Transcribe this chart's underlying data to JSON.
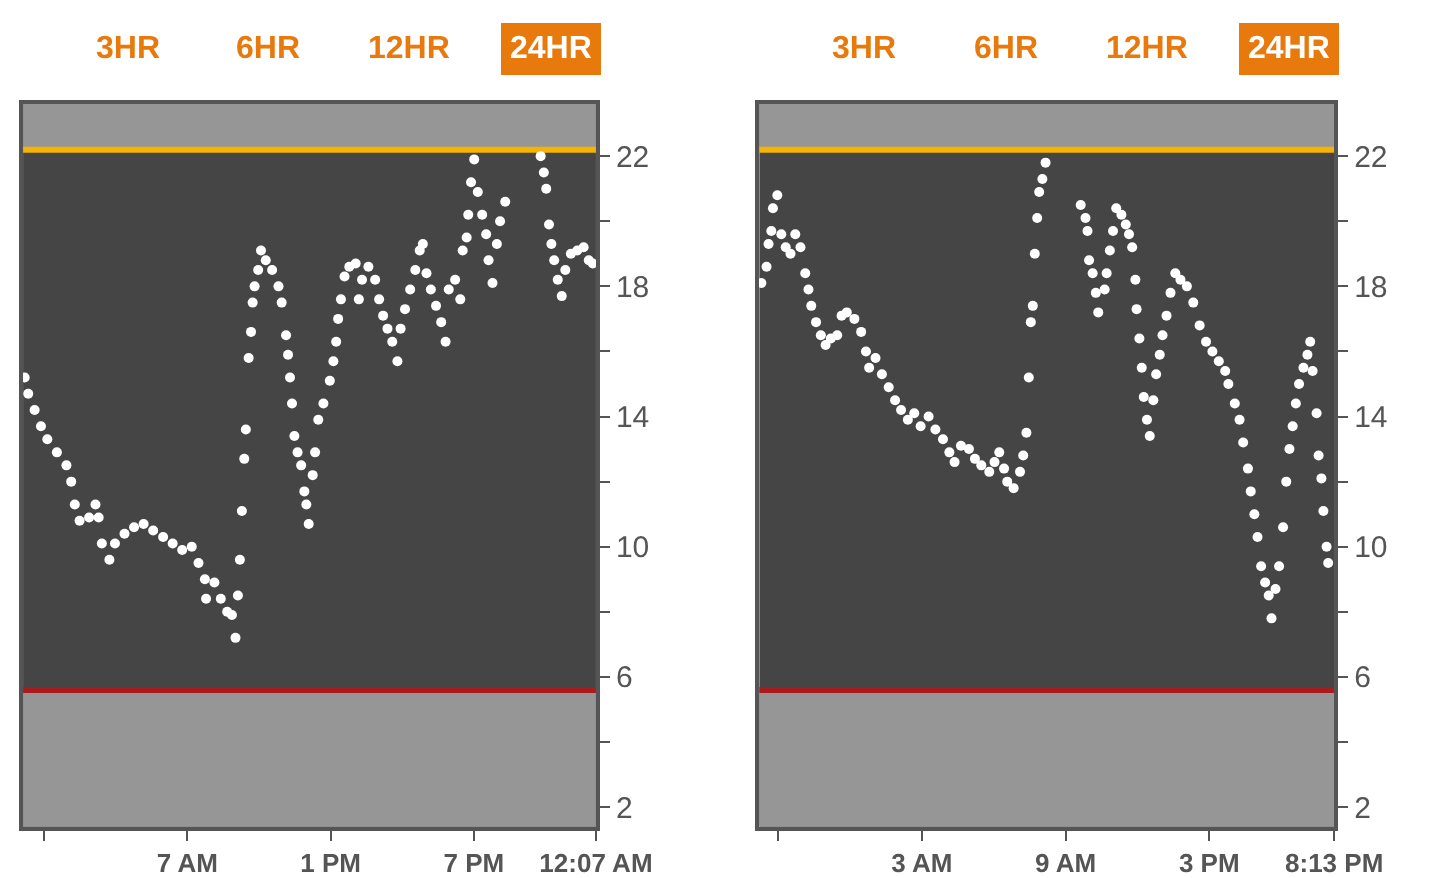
{
  "chart_data": [
    {
      "type": "scatter",
      "annotations": [
        "3HR",
        "6HR",
        "12HR",
        "24HR"
      ],
      "marker": "circle",
      "grid": false,
      "xlim": [
        "--01-01T00:07",
        "--01-02T00:07"
      ],
      "xticks": [
        {
          "value": "--01-01T01:00",
          "label": null
        },
        {
          "value": "--01-01T07:00",
          "label": "7 AM"
        },
        {
          "value": "--01-01T13:00",
          "label": "1 PM"
        },
        {
          "value": "--01-01T19:00",
          "label": "7 PM"
        },
        {
          "value": "--01-02T00:07",
          "label": "12:07 AM"
        }
      ],
      "ylim": [
        1.4,
        23.6
      ],
      "yticks": [
        2,
        {
          "value": 4,
          "label": null
        },
        6,
        {
          "value": 8,
          "label": null
        },
        10,
        {
          "value": 12,
          "label": null
        },
        14,
        {
          "value": 16,
          "label": null
        },
        18,
        {
          "value": 20,
          "label": null
        },
        22
      ],
      "ref_lines": [
        {
          "axis": "y",
          "value": 22.2,
          "color": "#f5b400"
        },
        {
          "axis": "y",
          "value": 5.6,
          "color": "#a81c1c"
        }
      ],
      "bands": [
        {
          "axis": "y",
          "from": 22.2,
          "to": 23.6,
          "color": "#969696"
        },
        {
          "axis": "y",
          "from": 1.4,
          "to": 5.6,
          "color": "#969696"
        }
      ],
      "series": [
        {
          "color": "#ffffff",
          "x": [
            "--01-01T00:11",
            "--01-01T00:20",
            "--01-01T00:36",
            "--01-01T00:52",
            "--01-01T01:08",
            "--01-01T01:32",
            "--01-01T01:56",
            "--01-01T02:08",
            "--01-01T02:17",
            "--01-01T02:29",
            "--01-01T02:53",
            "--01-01T03:09",
            "--01-01T03:17",
            "--01-01T03:25",
            "--01-01T03:44",
            "--01-01T03:58",
            "--01-01T04:22",
            "--01-01T04:46",
            "--01-01T05:10",
            "--01-01T05:34",
            "--01-01T05:59",
            "--01-01T06:23",
            "--01-01T06:47",
            "--01-01T07:11",
            "--01-01T07:28",
            "--01-01T07:44",
            "--01-01T07:47",
            "--01-01T08:08",
            "--01-01T08:24",
            "--01-01T08:40",
            "--01-01T08:52",
            "--01-01T09:01",
            "--01-01T09:07",
            "--01-01T09:12",
            "--01-01T09:17",
            "--01-01T09:23",
            "--01-01T09:27",
            "--01-01T09:34",
            "--01-01T09:40",
            "--01-01T09:44",
            "--01-01T09:49",
            "--01-01T09:58",
            "--01-01T10:05",
            "--01-01T10:17",
            "--01-01T10:33",
            "--01-01T10:49",
            "--01-01T10:57",
            "--01-01T11:08",
            "--01-01T11:13",
            "--01-01T11:18",
            "--01-01T11:23",
            "--01-01T11:29",
            "--01-01T11:37",
            "--01-01T11:46",
            "--01-01T11:54",
            "--01-01T11:59",
            "--01-01T12:05",
            "--01-01T12:15",
            "--01-01T12:21",
            "--01-01T12:29",
            "--01-01T12:42",
            "--01-01T12:58",
            "--01-01T13:07",
            "--01-01T13:14",
            "--01-01T13:19",
            "--01-01T13:26",
            "--01-01T13:35",
            "--01-01T13:47",
            "--01-01T14:03",
            "--01-01T14:11",
            "--01-01T14:19",
            "--01-01T14:35",
            "--01-01T14:52",
            "--01-01T15:02",
            "--01-01T15:12",
            "--01-01T15:23",
            "--01-01T15:35",
            "--01-01T15:48",
            "--01-01T15:56",
            "--01-01T16:07",
            "--01-01T16:20",
            "--01-01T16:33",
            "--01-01T16:44",
            "--01-01T16:52",
            "--01-01T17:01",
            "--01-01T17:12",
            "--01-01T17:25",
            "--01-01T17:38",
            "--01-01T17:49",
            "--01-01T17:57",
            "--01-01T18:13",
            "--01-01T18:26",
            "--01-01T18:32",
            "--01-01T18:42",
            "--01-01T18:46",
            "--01-01T18:53",
            "--01-01T19:01",
            "--01-01T19:10",
            "--01-01T19:21",
            "--01-01T19:31",
            "--01-01T19:37",
            "--01-01T19:47",
            "--01-01T19:58",
            "--01-01T20:06",
            "--01-01T20:19",
            "--01-01T21:48",
            "--01-01T21:56",
            "--01-01T22:02",
            "--01-01T22:09",
            "--01-01T22:15",
            "--01-01T22:22",
            "--01-01T22:31",
            "--01-01T22:41",
            "--01-01T22:50",
            "--01-01T23:04",
            "--01-01T23:20",
            "--01-01T23:36",
            "--01-01T23:49",
            "--01-01T23:59"
          ],
          "values": [
            15.2,
            14.7,
            14.2,
            13.7,
            13.3,
            12.9,
            12.5,
            12.0,
            11.3,
            10.8,
            10.9,
            11.3,
            10.9,
            10.1,
            9.6,
            10.1,
            10.4,
            10.6,
            10.7,
            10.5,
            10.3,
            10.1,
            9.9,
            10.0,
            9.5,
            9.0,
            8.4,
            8.9,
            8.4,
            8.0,
            7.9,
            7.2,
            8.5,
            9.6,
            11.1,
            12.7,
            13.6,
            15.8,
            16.6,
            17.5,
            18.0,
            18.5,
            19.1,
            18.8,
            18.5,
            18.0,
            17.5,
            16.5,
            15.9,
            15.2,
            14.4,
            13.4,
            12.9,
            12.5,
            11.7,
            11.3,
            10.7,
            12.2,
            12.9,
            13.9,
            14.4,
            15.1,
            15.7,
            16.3,
            17.0,
            17.6,
            18.3,
            18.6,
            18.7,
            17.6,
            18.2,
            18.6,
            18.2,
            17.6,
            17.1,
            16.7,
            16.3,
            15.7,
            16.7,
            17.3,
            17.9,
            18.5,
            19.1,
            19.3,
            18.4,
            17.9,
            17.4,
            16.9,
            16.3,
            17.9,
            18.2,
            17.6,
            19.1,
            19.5,
            20.2,
            21.2,
            21.9,
            20.9,
            20.2,
            19.6,
            18.8,
            18.1,
            19.3,
            20.0,
            20.6,
            22.0,
            21.5,
            21.0,
            19.9,
            19.3,
            18.8,
            18.2,
            17.7,
            18.5,
            19.0,
            19.1,
            19.2,
            18.8,
            18.7
          ]
        }
      ]
    },
    {
      "type": "scatter",
      "annotations": [
        "3HR",
        "6HR",
        "12HR",
        "24HR"
      ],
      "marker": "circle",
      "grid": false,
      "xlim": [
        "--01-01T20:13",
        "--01-02T20:13"
      ],
      "xticks": [
        {
          "value": "--01-01T21:00",
          "label": null
        },
        {
          "value": "--01-02T03:00",
          "label": "3 AM"
        },
        {
          "value": "--01-02T09:00",
          "label": "9 AM"
        },
        {
          "value": "--01-02T15:00",
          "label": "3 PM"
        },
        {
          "value": "--01-02T20:13",
          "label": "8:13 PM"
        }
      ],
      "ylim": [
        1.4,
        23.6
      ],
      "yticks": [
        2,
        {
          "value": 4,
          "label": null
        },
        6,
        {
          "value": 8,
          "label": null
        },
        10,
        {
          "value": 12,
          "label": null
        },
        14,
        {
          "value": 16,
          "label": null
        },
        18,
        {
          "value": 20,
          "label": null
        },
        22
      ],
      "ref_lines": [
        {
          "axis": "y",
          "value": 22.2,
          "color": "#f5b400"
        },
        {
          "axis": "y",
          "value": 5.6,
          "color": "#a81c1c"
        }
      ],
      "bands": [
        {
          "axis": "y",
          "from": 22.2,
          "to": 23.6,
          "color": "#969696"
        },
        {
          "axis": "y",
          "from": 1.4,
          "to": 5.6,
          "color": "#969696"
        }
      ],
      "series": [
        {
          "color": "#ffffff",
          "x": [
            "--01-01T20:18",
            "--01-01T20:31",
            "--01-01T20:36",
            "--01-01T20:43",
            "--01-01T20:47",
            "--01-01T20:58",
            "--01-01T21:08",
            "--01-01T21:19",
            "--01-01T21:31",
            "--01-01T21:43",
            "--01-01T21:56",
            "--01-01T22:08",
            "--01-01T22:16",
            "--01-01T22:23",
            "--01-01T22:35",
            "--01-01T22:47",
            "--01-01T22:59",
            "--01-01T23:12",
            "--01-01T23:28",
            "--01-01T23:39",
            "--01-01T23:52",
            "--01-02T00:11",
            "--01-02T00:28",
            "--01-02T00:40",
            "--01-02T00:48",
            "--01-02T01:04",
            "--01-02T01:20",
            "--01-02T01:37",
            "--01-02T01:53",
            "--01-02T02:08",
            "--01-02T02:25",
            "--01-02T02:41",
            "--01-02T02:57",
            "--01-02T03:17",
            "--01-02T03:34",
            "--01-02T03:53",
            "--01-02T04:09",
            "--01-02T04:22",
            "--01-02T04:38",
            "--01-02T04:58",
            "--01-02T05:13",
            "--01-02T05:29",
            "--01-02T05:49",
            "--01-02T06:02",
            "--01-02T06:14",
            "--01-02T06:26",
            "--01-02T06:34",
            "--01-02T06:50",
            "--01-02T07:06",
            "--01-02T07:14",
            "--01-02T07:22",
            "--01-02T07:28",
            "--01-02T07:33",
            "--01-02T07:38",
            "--01-02T07:43",
            "--01-02T07:49",
            "--01-02T07:54",
            "--01-02T08:02",
            "--01-02T08:10",
            "--01-02T09:38",
            "--01-02T09:50",
            "--01-02T09:55",
            "--01-02T09:59",
            "--01-02T10:08",
            "--01-02T10:16",
            "--01-02T10:22",
            "--01-02T10:38",
            "--01-02T10:43",
            "--01-02T10:51",
            "--01-02T10:59",
            "--01-02T11:07",
            "--01-02T11:20",
            "--01-02T11:31",
            "--01-02T11:39",
            "--01-02T11:47",
            "--01-02T11:55",
            "--01-02T11:58",
            "--01-02T12:05",
            "--01-02T12:11",
            "--01-02T12:16",
            "--01-02T12:24",
            "--01-02T12:31",
            "--01-02T12:40",
            "--01-02T12:47",
            "--01-02T12:56",
            "--01-02T13:03",
            "--01-02T13:13",
            "--01-02T13:23",
            "--01-02T13:35",
            "--01-02T13:48",
            "--01-02T14:04",
            "--01-02T14:20",
            "--01-02T14:36",
            "--01-02T14:52",
            "--01-02T15:08",
            "--01-02T15:24",
            "--01-02T15:40",
            "--01-02T15:48",
            "--01-02T16:04",
            "--01-02T16:16",
            "--01-02T16:25",
            "--01-02T16:37",
            "--01-02T16:44",
            "--01-02T16:53",
            "--01-02T17:01",
            "--01-02T17:10",
            "--01-02T17:20",
            "--01-02T17:29",
            "--01-02T17:36",
            "--01-02T17:46",
            "--01-02T17:55",
            "--01-02T18:05",
            "--01-02T18:13",
            "--01-02T18:21",
            "--01-02T18:29",
            "--01-02T18:37",
            "--01-02T18:45",
            "--01-02T18:56",
            "--01-02T19:06",
            "--01-02T19:13",
            "--01-02T19:19",
            "--01-02T19:29",
            "--01-02T19:34",
            "--01-02T19:41",
            "--01-02T19:46",
            "--01-02T19:54",
            "--01-02T19:58"
          ],
          "values": [
            18.1,
            18.6,
            19.3,
            19.7,
            20.4,
            20.8,
            19.6,
            19.2,
            19.0,
            19.6,
            19.2,
            18.4,
            17.9,
            17.4,
            16.9,
            16.5,
            16.2,
            16.4,
            16.5,
            17.1,
            17.2,
            17.0,
            16.6,
            16.0,
            15.5,
            15.8,
            15.3,
            14.9,
            14.5,
            14.2,
            13.9,
            14.1,
            13.7,
            14.0,
            13.6,
            13.3,
            12.9,
            12.6,
            13.1,
            13.0,
            12.7,
            12.5,
            12.3,
            12.6,
            12.9,
            12.4,
            12.0,
            11.8,
            12.3,
            12.8,
            13.5,
            15.2,
            16.9,
            17.4,
            19.0,
            20.1,
            20.9,
            21.3,
            21.8,
            20.5,
            20.1,
            19.7,
            18.8,
            18.4,
            17.8,
            17.2,
            17.9,
            18.4,
            19.1,
            19.7,
            20.4,
            20.2,
            19.9,
            19.6,
            19.2,
            18.2,
            17.3,
            16.4,
            15.5,
            14.6,
            13.9,
            13.4,
            14.5,
            15.3,
            15.9,
            16.5,
            17.1,
            17.8,
            18.4,
            18.2,
            18.0,
            17.5,
            16.8,
            16.3,
            16.0,
            15.7,
            15.4,
            15.0,
            14.4,
            13.9,
            13.2,
            12.4,
            11.7,
            11.0,
            10.3,
            9.4,
            8.9,
            8.5,
            7.8,
            8.7,
            9.4,
            10.6,
            12.0,
            13.0,
            13.7,
            14.4,
            15.0,
            15.5,
            15.9,
            16.3,
            15.4,
            14.1,
            12.8,
            12.1,
            11.1,
            10.0,
            9.5
          ]
        }
      ]
    }
  ]
}
